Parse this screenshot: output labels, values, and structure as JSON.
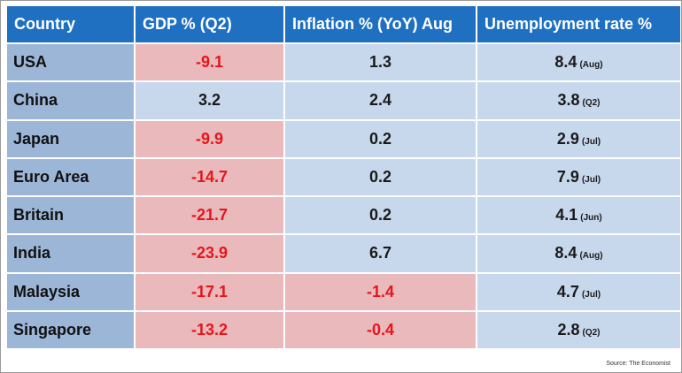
{
  "chart_data": {
    "type": "table",
    "columns": [
      "Country",
      "GDP % (Q2)",
      "Inflation %  (YoY) Aug",
      "Unemployment rate %"
    ],
    "rows": [
      {
        "country": "USA",
        "gdp": "-9.1",
        "inflation": "1.3",
        "unemployment": "8.4",
        "unemployment_period": "(Aug)"
      },
      {
        "country": "China",
        "gdp": "3.2",
        "inflation": "2.4",
        "unemployment": "3.8",
        "unemployment_period": "(Q2)"
      },
      {
        "country": "Japan",
        "gdp": "-9.9",
        "inflation": "0.2",
        "unemployment": "2.9",
        "unemployment_period": "(Jul)"
      },
      {
        "country": "Euro Area",
        "gdp": "-14.7",
        "inflation": "0.2",
        "unemployment": "7.9",
        "unemployment_period": "(Jul)"
      },
      {
        "country": "Britain",
        "gdp": "-21.7",
        "inflation": "0.2",
        "unemployment": "4.1",
        "unemployment_period": "(Jun)"
      },
      {
        "country": "India",
        "gdp": "-23.9",
        "inflation": "6.7",
        "unemployment": "8.4",
        "unemployment_period": "(Aug)"
      },
      {
        "country": "Malaysia",
        "gdp": "-17.1",
        "inflation": "-1.4",
        "unemployment": "4.7",
        "unemployment_period": "(Jul)"
      },
      {
        "country": "Singapore",
        "gdp": "-13.2",
        "inflation": "-0.4",
        "unemployment": "2.8",
        "unemployment_period": "(Q2)"
      }
    ],
    "colors": {
      "header_bg": "#1f70c1",
      "country_bg": "#9cb6d8",
      "positive_bg": "#c7d7ec",
      "negative_bg": "#eab9bb",
      "negative_text": "#e8141b"
    }
  },
  "source": "Source: The Economist"
}
